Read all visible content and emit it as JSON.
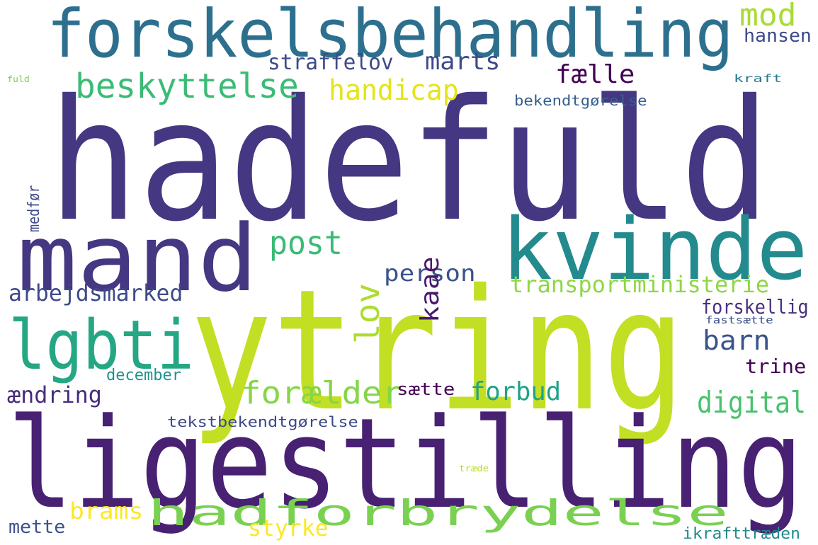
{
  "words": [
    {
      "text": "hadefuld",
      "color": "#453781"
    },
    {
      "text": "ytring",
      "color": "#c2df23"
    },
    {
      "text": "ligestilling",
      "color": "#482173"
    },
    {
      "text": "forskelsbehandling",
      "color": "#2d708e"
    },
    {
      "text": "mand",
      "color": "#453781"
    },
    {
      "text": "kvinde",
      "color": "#238a8d"
    },
    {
      "text": "lgbti",
      "color": "#25a784"
    },
    {
      "text": "hadforbrydelse",
      "color": "#7ad151"
    },
    {
      "text": "beskyttelse",
      "color": "#3bbb75"
    },
    {
      "text": "forælder",
      "color": "#86d549"
    },
    {
      "text": "digital",
      "color": "#4ac16d"
    },
    {
      "text": "post",
      "color": "#3bbb75"
    },
    {
      "text": "mod",
      "color": "#a8db34"
    },
    {
      "text": "handicap",
      "color": "#e5e419"
    },
    {
      "text": "transportministerie",
      "color": "#8fd744"
    },
    {
      "text": "arbejdsmarked",
      "color": "#3e4a89"
    },
    {
      "text": "person",
      "color": "#3b528b"
    },
    {
      "text": "straffelov",
      "color": "#3e4a89"
    },
    {
      "text": "marts",
      "color": "#3e4a89"
    },
    {
      "text": "fælle",
      "color": "#440154"
    },
    {
      "text": "barn",
      "color": "#3b528b"
    },
    {
      "text": "forbud",
      "color": "#20a386"
    },
    {
      "text": "ændring",
      "color": "#472c7a"
    },
    {
      "text": "brams",
      "color": "#fde725"
    },
    {
      "text": "styrke",
      "color": "#fde725"
    },
    {
      "text": "forskellig",
      "color": "#46327e"
    },
    {
      "text": "trine",
      "color": "#440154"
    },
    {
      "text": "hansen",
      "color": "#3e4a89"
    },
    {
      "text": "mette",
      "color": "#3b528b"
    },
    {
      "text": "sætte",
      "color": "#440154"
    },
    {
      "text": "december",
      "color": "#21918c"
    },
    {
      "text": "tekstbekendtgørelse",
      "color": "#3e4a89"
    },
    {
      "text": "ikrafttræden",
      "color": "#238a8d"
    },
    {
      "text": "bekendtgørelse",
      "color": "#355f8d"
    },
    {
      "text": "kaae",
      "color": "#481a6c"
    },
    {
      "text": "lov",
      "color": "#addc30"
    },
    {
      "text": "kraft",
      "color": "#2a788e"
    },
    {
      "text": "medfør",
      "color": "#3e4a89"
    },
    {
      "text": "fastsætte",
      "color": "#3b528b"
    },
    {
      "text": "fuld",
      "color": "#7ad151"
    },
    {
      "text": "træde",
      "color": "#b5de2b"
    }
  ]
}
